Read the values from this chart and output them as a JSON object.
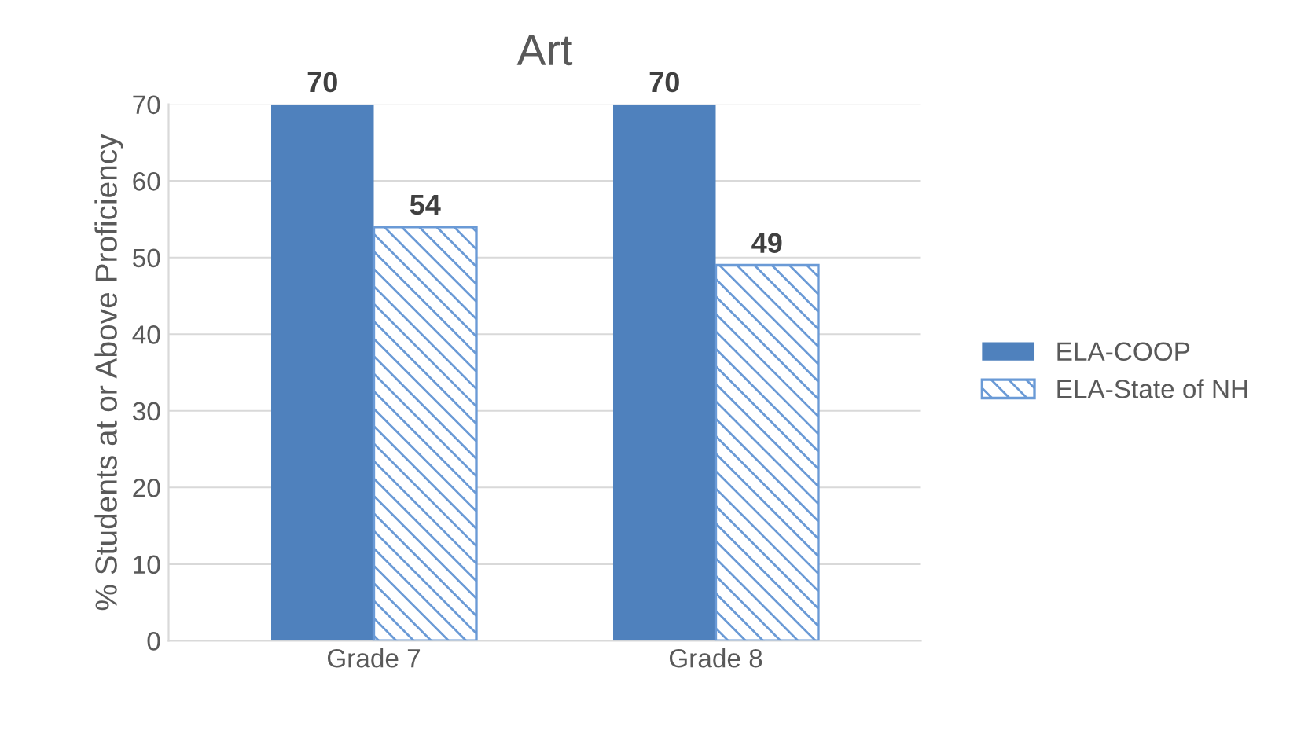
{
  "chart_data": {
    "type": "bar",
    "title": "Art",
    "ylabel": "% Students at or Above Proficiency",
    "categories": [
      "Grade 7",
      "Grade 8"
    ],
    "series": [
      {
        "name": "ELA-COOP",
        "color": "#4f81bd",
        "values": [
          70,
          70
        ]
      },
      {
        "name": "ELA-State of NH",
        "color": "#6a9ad6",
        "values": [
          54,
          49
        ]
      }
    ],
    "ylim": [
      0,
      70
    ],
    "yticks": [
      0,
      10,
      20,
      30,
      40,
      50,
      60,
      70
    ],
    "grid": "y",
    "legend": "right",
    "data_labels": true
  }
}
